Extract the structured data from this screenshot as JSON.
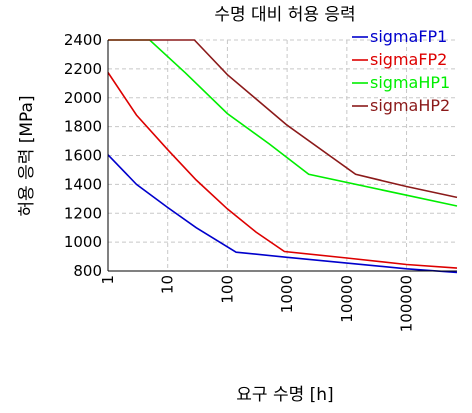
{
  "chart_data": {
    "type": "line",
    "title": "수명 대비 허용 응력",
    "xlabel": "요구 수명 [h]",
    "ylabel": "허용 응력 [MPa]",
    "x_scale": "log",
    "xlim": [
      1,
      700000
    ],
    "ylim": [
      800,
      2400
    ],
    "x_ticks": [
      "1",
      "10",
      "100",
      "1000",
      "10000",
      "100000"
    ],
    "y_ticks": [
      "800",
      "1000",
      "1200",
      "1400",
      "1600",
      "1800",
      "2000",
      "2200",
      "2400"
    ],
    "grid": true,
    "legend_position": "top-right",
    "series": [
      {
        "name": "sigmaFP1",
        "color": "#0000cc",
        "points": [
          [
            1,
            1605
          ],
          [
            3,
            1400
          ],
          [
            10,
            1240
          ],
          [
            30,
            1100
          ],
          [
            140,
            930
          ],
          [
            1000,
            895
          ],
          [
            10000,
            855
          ],
          [
            100000,
            815
          ],
          [
            700000,
            790
          ]
        ]
      },
      {
        "name": "sigmaFP2",
        "color": "#dd0000",
        "points": [
          [
            1,
            2175
          ],
          [
            3,
            1880
          ],
          [
            10,
            1640
          ],
          [
            30,
            1430
          ],
          [
            100,
            1230
          ],
          [
            300,
            1070
          ],
          [
            900,
            935
          ],
          [
            10000,
            890
          ],
          [
            100000,
            845
          ],
          [
            700000,
            820
          ]
        ]
      },
      {
        "name": "sigmaHP1",
        "color": "#00ee00",
        "points": [
          [
            1,
            2400
          ],
          [
            5,
            2400
          ],
          [
            20,
            2170
          ],
          [
            100,
            1890
          ],
          [
            500,
            1680
          ],
          [
            2300,
            1470
          ],
          [
            100000,
            1325
          ],
          [
            700000,
            1250
          ]
        ]
      },
      {
        "name": "sigmaHP2",
        "color": "#8b1a1a",
        "points": [
          [
            1,
            2400
          ],
          [
            28,
            2400
          ],
          [
            100,
            2160
          ],
          [
            1000,
            1810
          ],
          [
            14000,
            1470
          ],
          [
            100000,
            1385
          ],
          [
            700000,
            1310
          ]
        ]
      }
    ]
  }
}
